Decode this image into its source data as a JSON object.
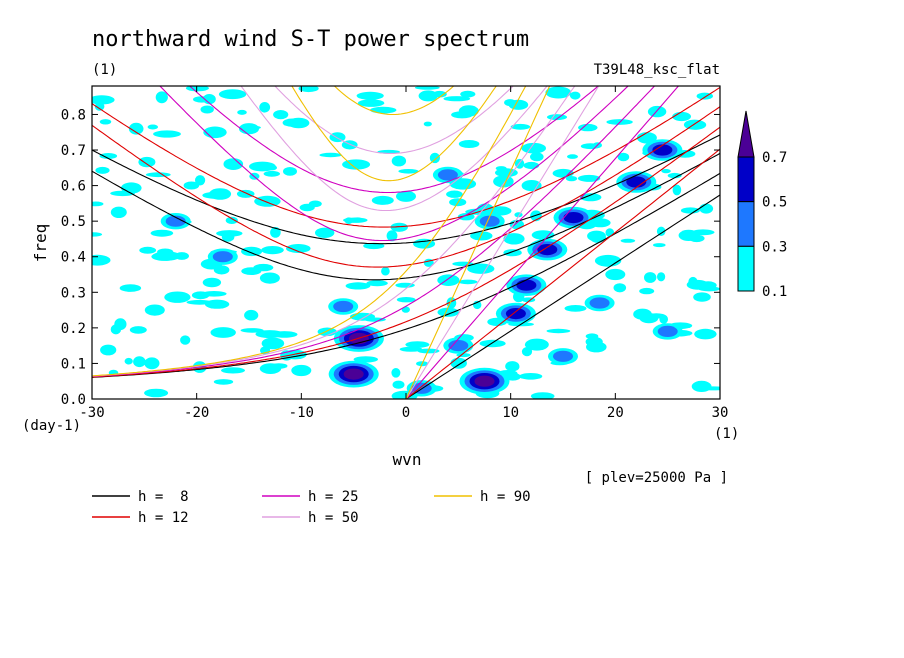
{
  "chart_data": {
    "type": "heatmap",
    "title": "northward wind S-T power spectrum",
    "subtitle_left": "(1)",
    "subtitle_right": "T39L48_ksc_flat",
    "xlabel": "wvn",
    "ylabel": "freq",
    "x_unit": "(1)",
    "y_unit": "(day-1)",
    "xlim": [
      -30,
      30
    ],
    "ylim": [
      0,
      0.88
    ],
    "x_ticks": [
      -30,
      -20,
      -10,
      0,
      10,
      20,
      30
    ],
    "x_tick_labels": [
      "-30",
      "-20",
      "-10",
      "0",
      "10",
      "20",
      "30"
    ],
    "y_ticks": [
      0,
      0.1,
      0.2,
      0.3,
      0.4,
      0.5,
      0.6,
      0.7,
      0.8
    ],
    "y_tick_labels": [
      "0.0",
      "0.1",
      "0.2",
      "0.3",
      "0.4",
      "0.5",
      "0.6",
      "0.7",
      "0.8"
    ],
    "annotation": "[ plev=25000 Pa ]",
    "colorbar": {
      "levels": [
        0.1,
        0.3,
        0.5,
        0.7
      ],
      "labels": [
        "0.1",
        "0.3",
        "0.5",
        "0.7"
      ],
      "colors": [
        "#00ffff",
        "#1e78ff",
        "#0000c8",
        "#4b0096"
      ]
    },
    "blobs": [
      {
        "x": -5.0,
        "y": 0.07,
        "level": 4
      },
      {
        "x": 7.5,
        "y": 0.05,
        "level": 4
      },
      {
        "x": -4.5,
        "y": 0.17,
        "level": 4
      },
      {
        "x": 13.5,
        "y": 0.42,
        "level": 3
      },
      {
        "x": 11.5,
        "y": 0.32,
        "level": 3
      },
      {
        "x": 10.5,
        "y": 0.24,
        "level": 3
      },
      {
        "x": 16.0,
        "y": 0.51,
        "level": 3
      },
      {
        "x": 24.5,
        "y": 0.7,
        "level": 3
      },
      {
        "x": 22.0,
        "y": 0.61,
        "level": 3
      },
      {
        "x": -17.5,
        "y": 0.4,
        "level": 2
      },
      {
        "x": -22.0,
        "y": 0.5,
        "level": 2
      },
      {
        "x": 4.0,
        "y": 0.63,
        "level": 2
      },
      {
        "x": 18.5,
        "y": 0.27,
        "level": 2
      },
      {
        "x": -6.0,
        "y": 0.26,
        "level": 2
      },
      {
        "x": 5.0,
        "y": 0.15,
        "level": 2
      },
      {
        "x": 25.0,
        "y": 0.19,
        "level": 2
      },
      {
        "x": 8.0,
        "y": 0.5,
        "level": 2
      },
      {
        "x": 1.5,
        "y": 0.03,
        "level": 2
      },
      {
        "x": 15.0,
        "y": 0.12,
        "level": 2
      },
      {
        "x": -13.0,
        "y": 0.34,
        "level": 1
      },
      {
        "x": -24.0,
        "y": 0.25,
        "level": 1
      },
      {
        "x": 20.0,
        "y": 0.35,
        "level": 1
      },
      {
        "x": 27.0,
        "y": 0.46,
        "level": 1
      },
      {
        "x": -10.0,
        "y": 0.08,
        "level": 1
      },
      {
        "x": 0.0,
        "y": 0.57,
        "level": 1
      },
      {
        "x": 12.0,
        "y": 0.6,
        "level": 1
      },
      {
        "x": -15.0,
        "y": 0.76,
        "level": 1
      },
      {
        "x": 6.0,
        "y": 0.81,
        "level": 1
      }
    ],
    "curves": [
      {
        "h": 8,
        "color": "#000000"
      },
      {
        "h": 12,
        "color": "#e00000"
      },
      {
        "h": 25,
        "color": "#d000c0"
      },
      {
        "h": 50,
        "color": "#e0a0e0"
      },
      {
        "h": 90,
        "color": "#f0c000"
      }
    ],
    "legend": [
      {
        "label": "h =  8",
        "color": "#000000"
      },
      {
        "label": "h = 12",
        "color": "#e00000"
      },
      {
        "label": "h = 25",
        "color": "#d000c0"
      },
      {
        "label": "h = 50",
        "color": "#e0a0e0"
      },
      {
        "label": "h = 90",
        "color": "#f0c000"
      }
    ]
  }
}
